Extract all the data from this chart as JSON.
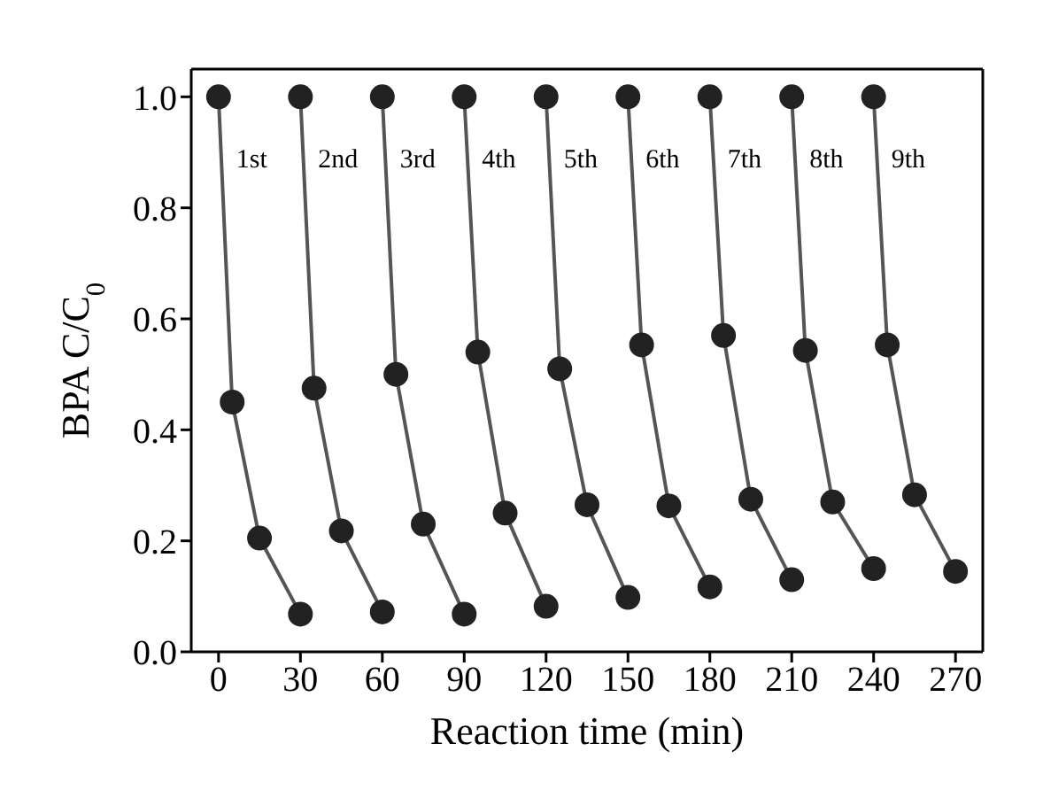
{
  "chart_data": {
    "type": "line",
    "xlabel": "Reaction time (min)",
    "ylabel": "BPA C/C$_{0}$",
    "xlim": [
      -10,
      280
    ],
    "ylim": [
      0,
      1.05
    ],
    "xticks": [
      0,
      30,
      60,
      90,
      120,
      150,
      180,
      210,
      240,
      270
    ],
    "yticks": [
      {
        "value": 0,
        "label": "0.0"
      },
      {
        "value": 0.2,
        "label": "0.2"
      },
      {
        "value": 0.4,
        "label": "0.4"
      },
      {
        "value": 0.6,
        "label": "0.6"
      },
      {
        "value": 0.8,
        "label": "0.8"
      },
      {
        "value": 1,
        "label": "1.0"
      }
    ],
    "marker": "circle",
    "line_style": "solid",
    "grid": false,
    "legend": false,
    "series": [
      {
        "name": "1st",
        "color": "#222222",
        "x": [
          0,
          5,
          15,
          30
        ],
        "values": [
          1.0,
          0.45,
          0.205,
          0.068
        ]
      },
      {
        "name": "2nd",
        "color": "#222222",
        "x": [
          30,
          35,
          45,
          60
        ],
        "values": [
          1.0,
          0.475,
          0.218,
          0.072
        ]
      },
      {
        "name": "3rd",
        "color": "#222222",
        "x": [
          60,
          65,
          75,
          90
        ],
        "values": [
          1.0,
          0.5,
          0.23,
          0.068
        ]
      },
      {
        "name": "4th",
        "color": "#222222",
        "x": [
          90,
          95,
          105,
          120
        ],
        "values": [
          1.0,
          0.54,
          0.25,
          0.082
        ]
      },
      {
        "name": "5th",
        "color": "#222222",
        "x": [
          120,
          125,
          135,
          150
        ],
        "values": [
          1.0,
          0.51,
          0.265,
          0.098
        ]
      },
      {
        "name": "6th",
        "color": "#222222",
        "x": [
          150,
          155,
          165,
          180
        ],
        "values": [
          1.0,
          0.553,
          0.263,
          0.117
        ]
      },
      {
        "name": "7th",
        "color": "#222222",
        "x": [
          180,
          185,
          195,
          210
        ],
        "values": [
          1.0,
          0.57,
          0.275,
          0.13
        ]
      },
      {
        "name": "8th",
        "color": "#222222",
        "x": [
          210,
          215,
          225,
          240
        ],
        "values": [
          1.0,
          0.543,
          0.27,
          0.15
        ]
      },
      {
        "name": "9th",
        "color": "#222222",
        "x": [
          240,
          245,
          255,
          270
        ],
        "values": [
          1.0,
          0.553,
          0.283,
          0.145
        ]
      }
    ]
  }
}
